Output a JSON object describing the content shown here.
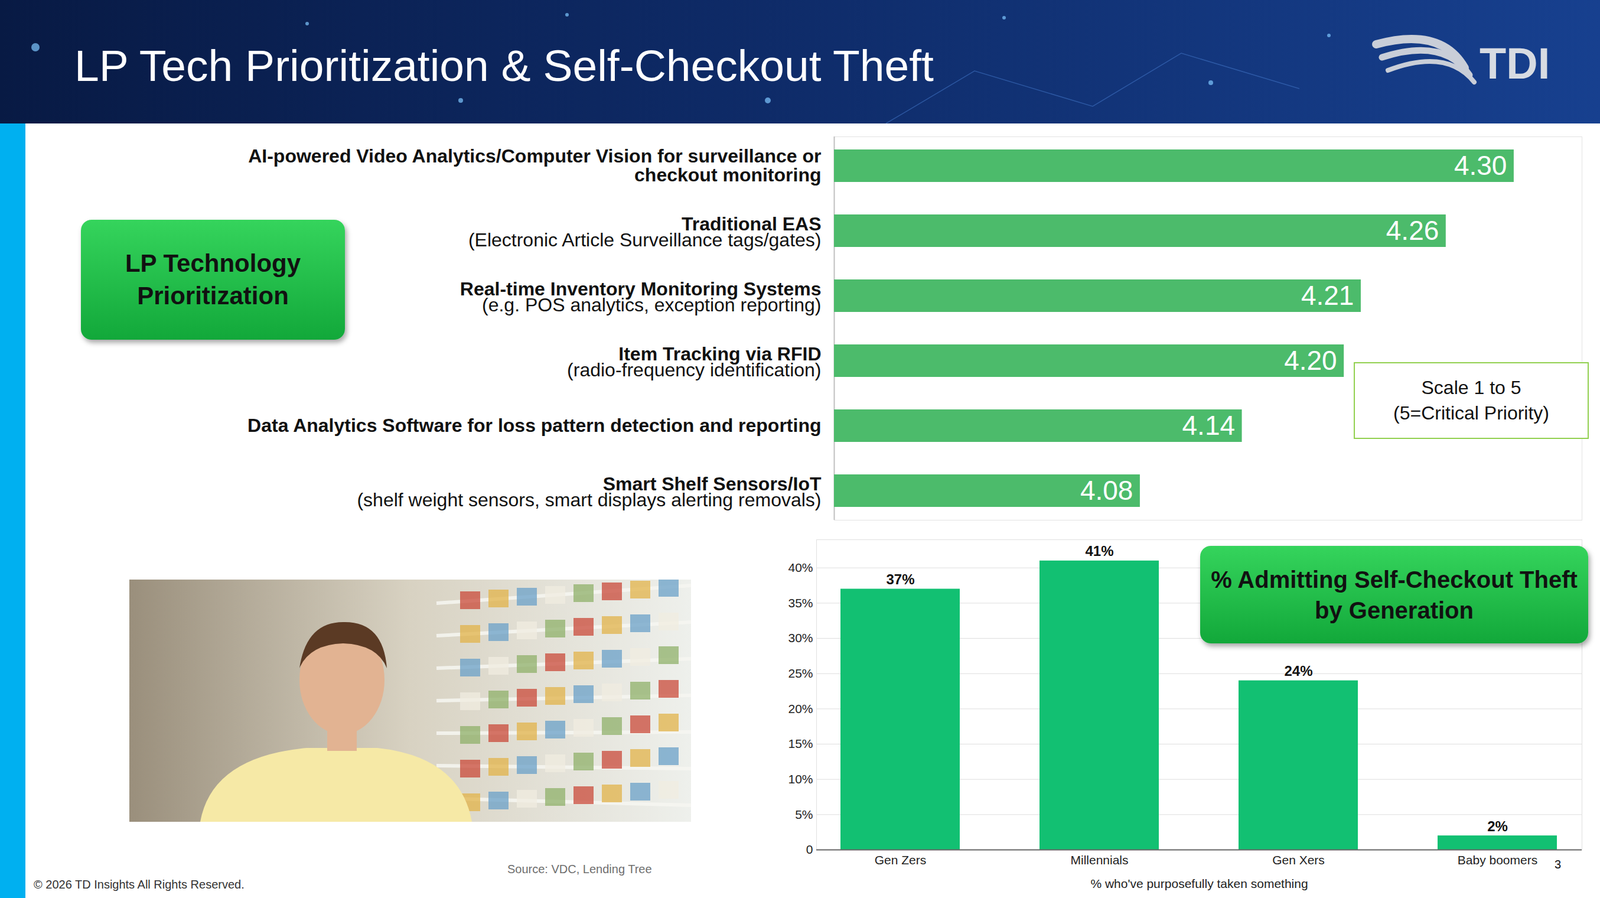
{
  "header": {
    "title": "LP Tech Prioritization & Self-Checkout Theft",
    "logo": "TDI"
  },
  "chart_data": [
    {
      "type": "bar",
      "title": "LP Technology Prioritization",
      "orientation": "horizontal",
      "categories": [
        "AI-powered Video Analytics/Computer Vision for surveillance or checkout monitoring",
        "Traditional EAS",
        "Real-time Inventory Monitoring Systems",
        "Item Tracking via RFID",
        "Data Analytics Software for loss pattern detection and reporting",
        "Smart Shelf Sensors/IoT"
      ],
      "category_details": [
        null,
        "(Electronic Article Surveillance tags/gates)",
        "(e.g. POS analytics, exception reporting)",
        "(radio-frequency identification)",
        null,
        "(shelf weight sensors, smart displays alerting removals)"
      ],
      "values": [
        4.3,
        4.26,
        4.21,
        4.2,
        4.14,
        4.08
      ],
      "value_labels": [
        "4.30",
        "4.26",
        "4.21",
        "4.20",
        "4.14",
        "4.08"
      ],
      "color": "#4cbb6b",
      "xlim": [
        3.9,
        4.34
      ],
      "xticks": [],
      "tick_labels": "y",
      "data_labels": true,
      "annotation": [
        "Scale 1 to 5",
        "(5=Critical Priority)"
      ]
    },
    {
      "type": "bar",
      "title": "% Admitting Self-Checkout Theft by Generation",
      "categories": [
        "Gen Zers",
        "Millennials",
        "Gen Xers",
        "Baby boomers"
      ],
      "values": [
        37,
        41,
        24,
        2
      ],
      "value_labels": [
        "37%",
        "41%",
        "24%",
        "2%"
      ],
      "color": "#12c072",
      "xlabel": "% who've purposefully taken something",
      "ylim": [
        0,
        44
      ],
      "yticks": [
        0,
        {
          "value": 5,
          "label": "5%"
        },
        {
          "value": 10,
          "label": "10%"
        },
        {
          "value": 15,
          "label": "15%"
        },
        {
          "value": 20,
          "label": "20%"
        },
        {
          "value": 25,
          "label": "25%"
        },
        {
          "value": 30,
          "label": "30%"
        },
        {
          "value": 35,
          "label": "35%"
        },
        {
          "value": 40,
          "label": "40%"
        }
      ],
      "grid": true,
      "data_labels": true
    }
  ],
  "footer": {
    "source": "Source: VDC, Lending Tree",
    "copyright": "© 2026 TD Insights All Rights Reserved.",
    "page": "3"
  }
}
